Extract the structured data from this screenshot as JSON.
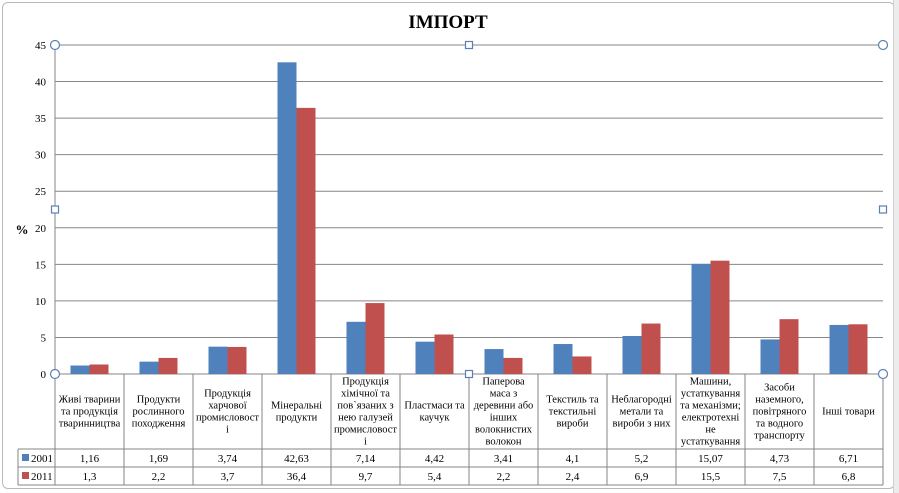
{
  "chart_data": {
    "type": "bar",
    "title": "ІМПОРТ",
    "ylabel": "%",
    "xlabel": "",
    "ylim": [
      0,
      45
    ],
    "yticks": [
      0,
      5,
      10,
      15,
      20,
      25,
      30,
      35,
      40,
      45
    ],
    "grid": true,
    "legend": "table-left",
    "categories": [
      [
        "Живі тварини",
        "та продукція",
        "тваринництва"
      ],
      [
        "Продукти",
        "рослинного",
        "походження"
      ],
      [
        "Продукція",
        "харчової",
        "промисловост",
        "і"
      ],
      [
        "Мінеральні",
        "продукти"
      ],
      [
        "Продукція",
        "хімічної та",
        "пов`язаних  з",
        "нею галузей",
        "промисловост",
        "і"
      ],
      [
        "Пластмаси та",
        "каучук"
      ],
      [
        "Паперова",
        "маса з",
        "деревини або",
        "інших",
        "волокнистих",
        "волокон"
      ],
      [
        "Текстиль та",
        "текстильні",
        "вироби"
      ],
      [
        "Неблагородні",
        "метали та",
        "вироби з них"
      ],
      [
        "Машини,",
        "устаткування",
        "та механізми;",
        "електротехні",
        "не",
        "устаткування"
      ],
      [
        "Засоби",
        "наземного,",
        "повітряного",
        "та водного",
        "транспорту"
      ],
      [
        "Інші товари"
      ]
    ],
    "series": [
      {
        "name": "2001",
        "color": "#4f81bd",
        "values": [
          1.16,
          1.69,
          3.74,
          42.63,
          7.14,
          4.42,
          3.41,
          4.1,
          5.2,
          15.07,
          4.73,
          6.71
        ],
        "labels": [
          "1,16",
          "1,69",
          "3,74",
          "42,63",
          "7,14",
          "4,42",
          "3,41",
          "4,1",
          "5,2",
          "15,07",
          "4,73",
          "6,71"
        ]
      },
      {
        "name": "2011",
        "color": "#c0504d",
        "values": [
          1.3,
          2.2,
          3.7,
          36.4,
          9.7,
          5.4,
          2.2,
          2.4,
          6.9,
          15.5,
          7.5,
          6.8
        ],
        "labels": [
          "1,3",
          "2,2",
          "3,7",
          "36,4",
          "9,7",
          "5,4",
          "2,2",
          "2,4",
          "6,9",
          "15,5",
          "7,5",
          "6,8"
        ]
      }
    ]
  }
}
